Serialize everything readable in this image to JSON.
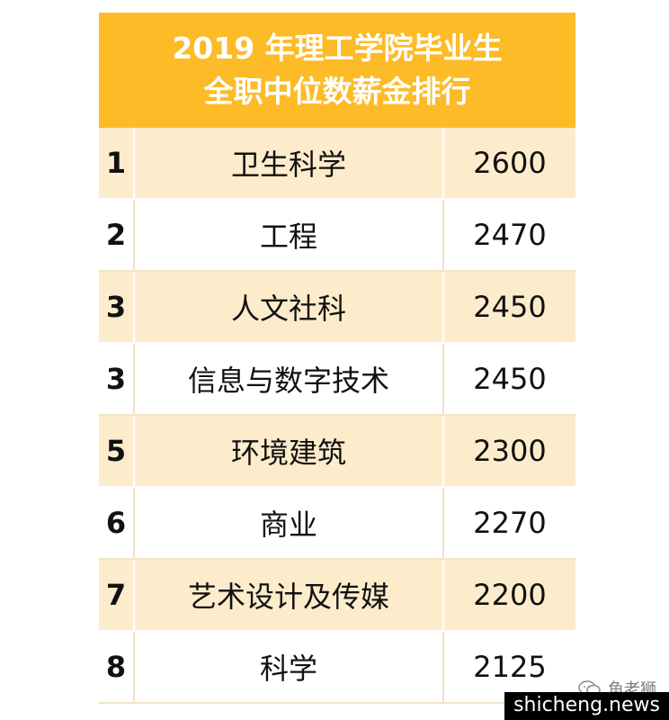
{
  "header": {
    "line1": "2019 年理工学院毕业生",
    "line2": "全职中位数薪金排行"
  },
  "rows": [
    {
      "rank": "1",
      "name": "卫生科学",
      "salary": "2600"
    },
    {
      "rank": "2",
      "name": "工程",
      "salary": "2470"
    },
    {
      "rank": "3",
      "name": "人文社科",
      "salary": "2450"
    },
    {
      "rank": "3",
      "name": "信息与数字技术",
      "salary": "2450"
    },
    {
      "rank": "5",
      "name": "环境建筑",
      "salary": "2300"
    },
    {
      "rank": "6",
      "name": "商业",
      "salary": "2270"
    },
    {
      "rank": "7",
      "name": "艺术设计及传媒",
      "salary": "2200"
    },
    {
      "rank": "8",
      "name": "科学",
      "salary": "2125"
    }
  ],
  "watermark": {
    "text": "鱼老狮",
    "icon": "wechat-icon"
  },
  "source": "shicheng.news",
  "colors": {
    "header": "#fcbb27",
    "stripe": "#fdeccb"
  }
}
